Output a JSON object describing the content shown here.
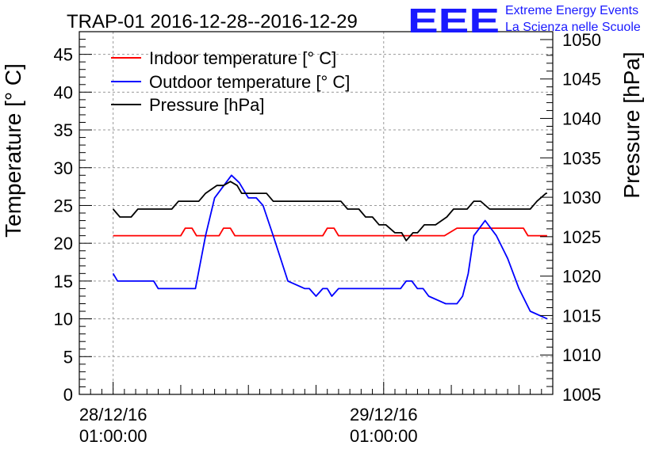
{
  "chart_data": {
    "type": "line",
    "title": "TRAP-01 2016-12-28--2016-12-29",
    "xlabel": "",
    "ylabel": "Temperature [° C]",
    "y2label": "Pressure [hPa]",
    "ylim": [
      0,
      48
    ],
    "y2lim": [
      1005,
      1051
    ],
    "yticks": [
      0,
      5,
      10,
      15,
      20,
      25,
      30,
      35,
      40,
      45
    ],
    "y2ticks": [
      1005,
      1010,
      1015,
      1020,
      1025,
      1030,
      1035,
      1040,
      1045,
      1050
    ],
    "x_unit": "hours since 2016-12-27 22:00:00",
    "xlim": [
      0,
      42
    ],
    "xticks": [
      {
        "x": 3,
        "line1": "28/12/16",
        "line2": "01:00:00"
      },
      {
        "x": 27,
        "line1": "29/12/16",
        "line2": "01:00:00"
      }
    ],
    "grid": true,
    "legend_position": "top-left",
    "series": [
      {
        "name": "Indoor temperature [° C]",
        "color": "#ff0000",
        "axis": "left",
        "x": [
          3,
          9,
          9.4,
          10,
          10.4,
          12.4,
          12.8,
          13.4,
          13.8,
          21.6,
          22,
          22.6,
          23,
          32.4,
          33.5,
          39.4,
          39.8,
          41.5
        ],
        "y": [
          21,
          21,
          22,
          22,
          21,
          21,
          22,
          22,
          21,
          21,
          22,
          22,
          21,
          21,
          22,
          22,
          21,
          21
        ]
      },
      {
        "name": "Outdoor temperature [° C]",
        "color": "#0000ff",
        "axis": "left",
        "x": [
          3,
          3.4,
          6.6,
          7,
          10.3,
          11.2,
          12,
          13.5,
          14.2,
          15,
          15.7,
          16.3,
          17.2,
          18.5,
          20,
          20.4,
          21,
          21.6,
          22,
          22.4,
          23,
          23.4,
          23.8,
          28.5,
          29,
          29.5,
          30,
          30.5,
          31,
          32.5,
          33.5,
          34,
          34.5,
          35,
          35.5,
          36,
          36.5,
          37,
          38,
          39,
          40,
          41.5
        ],
        "y": [
          16,
          15,
          15,
          14,
          14,
          21,
          26,
          29,
          28,
          26,
          26,
          25,
          21,
          15,
          14,
          14,
          13,
          14,
          14,
          13,
          14,
          14,
          14,
          14,
          15,
          15,
          14,
          14,
          13,
          12,
          12,
          13,
          16,
          21,
          22,
          23,
          22,
          21,
          18,
          14,
          11,
          10
        ]
      },
      {
        "name": "Pressure [hPa]",
        "color": "#000000",
        "axis": "right",
        "x": [
          3,
          3.6,
          4.6,
          5.2,
          8.2,
          8.8,
          10.6,
          11.2,
          12.2,
          12.8,
          13.4,
          14,
          14.4,
          15,
          16.6,
          17.2,
          22,
          23.2,
          23.8,
          24.8,
          25.4,
          26,
          26.6,
          27.2,
          28,
          28.6,
          29,
          29.6,
          30,
          30.6,
          31.6,
          32.6,
          33.2,
          34.4,
          35,
          35.6,
          36.4,
          37,
          40,
          40.6,
          41.4,
          41.5
        ],
        "y": [
          1028.5,
          1027.5,
          1027.5,
          1028.5,
          1028.5,
          1029.5,
          1029.5,
          1030.5,
          1031.5,
          1031.5,
          1032,
          1031.5,
          1030.5,
          1030.5,
          1030.5,
          1029.5,
          1029.5,
          1029.5,
          1028.5,
          1028.5,
          1027.5,
          1027.5,
          1026.5,
          1026.5,
          1025.5,
          1025.5,
          1024.5,
          1025.5,
          1025.5,
          1026.5,
          1026.5,
          1027.5,
          1028.5,
          1028.5,
          1029.5,
          1029.5,
          1028.5,
          1028.5,
          1028.5,
          1029.5,
          1030.5,
          1030.5
        ]
      }
    ]
  },
  "logo": {
    "letters": "EEE",
    "line1": "Extreme Energy Events",
    "line2": "La Scienza nelle Scuole"
  }
}
